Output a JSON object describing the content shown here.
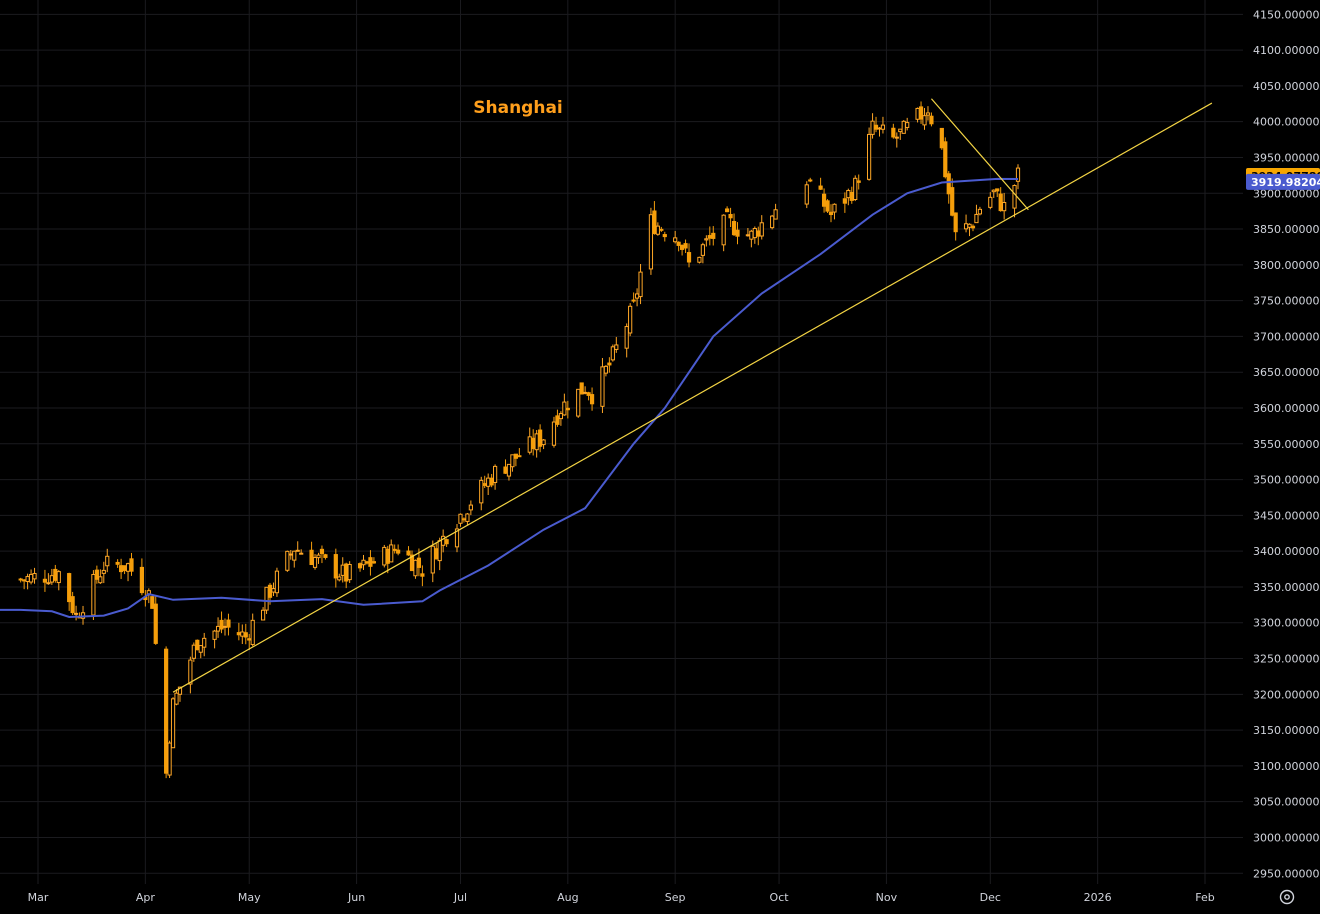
{
  "chart_data": {
    "type": "candlestick",
    "title": "Shanghai",
    "x_axis_labels": [
      "Mar",
      "Apr",
      "May",
      "Jun",
      "Jul",
      "Aug",
      "Sep",
      "Oct",
      "Nov",
      "Dec",
      "2026",
      "Feb"
    ],
    "y_axis_ticks": [
      "4150.00000",
      "4100.00000",
      "4050.00000",
      "4000.00000",
      "3950.00000",
      "3900.00000",
      "3850.00000",
      "3800.00000",
      "3750.00000",
      "3700.00000",
      "3650.00000",
      "3600.00000",
      "3550.00000",
      "3500.00000",
      "3450.00000",
      "3400.00000",
      "3350.00000",
      "3300.00000",
      "3250.00000",
      "3200.00000",
      "3150.00000",
      "3100.00000",
      "3050.00000",
      "3000.00000",
      "2950.00000"
    ],
    "ylim": [
      2935,
      4170
    ],
    "last_price": "3924.07780",
    "moving_average_last": "3919.98204",
    "grid": true,
    "close_anchors": [
      [
        "2025-02-24",
        3360
      ],
      [
        "2025-03-07",
        3370
      ],
      [
        "2025-03-12",
        3310
      ],
      [
        "2025-03-20",
        3380
      ],
      [
        "2025-03-27",
        3380
      ],
      [
        "2025-04-02",
        3340
      ],
      [
        "2025-04-03",
        3330
      ],
      [
        "2025-04-07",
        3090
      ],
      [
        "2025-04-08",
        3145
      ],
      [
        "2025-04-09",
        3185
      ],
      [
        "2025-04-16",
        3275
      ],
      [
        "2025-04-24",
        3295
      ],
      [
        "2025-04-30",
        3280
      ],
      [
        "2025-05-07",
        3345
      ],
      [
        "2025-05-14",
        3405
      ],
      [
        "2025-05-22",
        3385
      ],
      [
        "2025-05-29",
        3365
      ],
      [
        "2025-06-06",
        3385
      ],
      [
        "2025-06-13",
        3405
      ],
      [
        "2025-06-20",
        3375
      ],
      [
        "2025-06-27",
        3425
      ],
      [
        "2025-07-04",
        3470
      ],
      [
        "2025-07-11",
        3510
      ],
      [
        "2025-07-18",
        3535
      ],
      [
        "2025-07-25",
        3560
      ],
      [
        "2025-07-30",
        3600
      ],
      [
        "2025-08-06",
        3630
      ],
      [
        "2025-08-08",
        3620
      ],
      [
        "2025-08-13",
        3660
      ],
      [
        "2025-08-20",
        3740
      ],
      [
        "2025-08-25",
        3860
      ],
      [
        "2025-09-02",
        3840
      ],
      [
        "2025-09-05",
        3800
      ],
      [
        "2025-09-10",
        3830
      ],
      [
        "2025-09-16",
        3860
      ],
      [
        "2025-09-23",
        3840
      ],
      [
        "2025-09-30",
        3880
      ],
      [
        "2025-10-09",
        3920
      ],
      [
        "2025-10-16",
        3870
      ],
      [
        "2025-10-23",
        3910
      ],
      [
        "2025-10-28",
        3990
      ],
      [
        "2025-11-03",
        3975
      ],
      [
        "2025-11-07",
        3990
      ],
      [
        "2025-11-13",
        4020
      ],
      [
        "2025-11-17",
        3960
      ],
      [
        "2025-11-21",
        3840
      ],
      [
        "2025-11-26",
        3860
      ],
      [
        "2025-11-28",
        3880
      ],
      [
        "2025-12-02",
        3900
      ],
      [
        "2025-12-05",
        3880
      ],
      [
        "2025-12-09",
        3924
      ]
    ],
    "moving_average": [
      [
        "2025-02-24",
        3318
      ],
      [
        "2025-03-05",
        3316
      ],
      [
        "2025-03-10",
        3308
      ],
      [
        "2025-03-20",
        3310
      ],
      [
        "2025-03-27",
        3320
      ],
      [
        "2025-04-02",
        3340
      ],
      [
        "2025-04-09",
        3332
      ],
      [
        "2025-04-23",
        3335
      ],
      [
        "2025-05-07",
        3330
      ],
      [
        "2025-05-22",
        3333
      ],
      [
        "2025-06-03",
        3325
      ],
      [
        "2025-06-20",
        3330
      ],
      [
        "2025-06-25",
        3345
      ],
      [
        "2025-07-09",
        3380
      ],
      [
        "2025-07-25",
        3430
      ],
      [
        "2025-08-06",
        3460
      ],
      [
        "2025-08-20",
        3550
      ],
      [
        "2025-08-29",
        3600
      ],
      [
        "2025-09-12",
        3700
      ],
      [
        "2025-09-26",
        3760
      ],
      [
        "2025-10-13",
        3815
      ],
      [
        "2025-10-28",
        3870
      ],
      [
        "2025-11-07",
        3900
      ],
      [
        "2025-11-17",
        3915
      ],
      [
        "2025-12-03",
        3920
      ],
      [
        "2025-12-09",
        3919.98
      ]
    ],
    "trendlines": [
      {
        "from": [
          "2025-04-09",
          3203
        ],
        "to": [
          "2026-02-03",
          4026
        ]
      },
      {
        "from": [
          "2025-11-14",
          4032
        ],
        "to": [
          "2025-12-12",
          3877
        ]
      }
    ],
    "colors": {
      "background": "#000000",
      "up_candle": "#ffa726",
      "down_candle": "#f59e0b",
      "moving_average": "#4a5bcf",
      "trendline": "#f3d444",
      "title": "#ff9f1c",
      "grid": "#1b1b1f",
      "axis_text": "#d1d4dc",
      "price_tag": "#f7a600",
      "ma_tag": "#4a5bcf"
    }
  },
  "ui": {
    "settings_icon": "gear-icon"
  }
}
